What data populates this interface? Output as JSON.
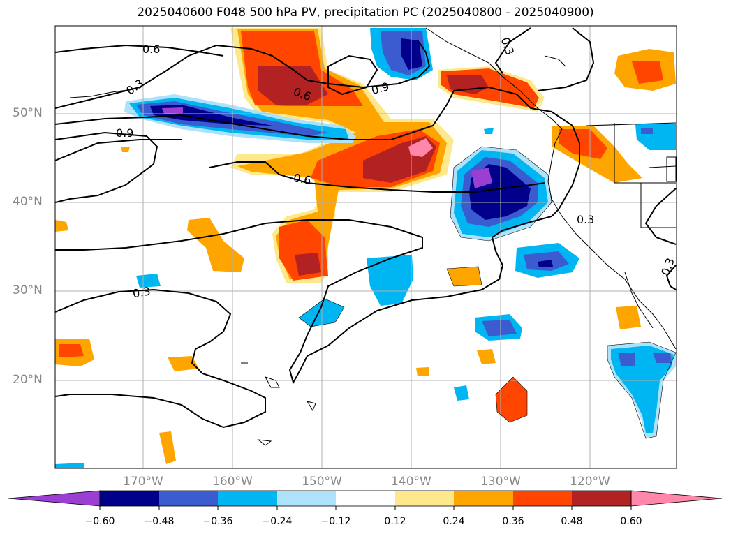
{
  "title": "2025040600 F048 500 hPa PV, precipitation PC (2025040800 - 2025040900)",
  "lat_labels": [
    "50°N",
    "40°N",
    "30°N",
    "20°N"
  ],
  "lon_labels": [
    "170°W",
    "160°W",
    "150°W",
    "140°W",
    "130°W",
    "120°W"
  ],
  "contour_labels": [
    "0.6",
    "0.3",
    "0.6",
    "0.9",
    "0.3",
    "0.9",
    "0.6",
    "0.3",
    "0.3",
    "0.3"
  ],
  "colorbar": {
    "ticks": [
      "−0.60",
      "−0.48",
      "−0.36",
      "−0.24",
      "−0.12",
      "0.12",
      "0.24",
      "0.36",
      "0.48",
      "0.60"
    ],
    "colors": [
      "#9a3fd1",
      "#00008b",
      "#3b5bd0",
      "#00b6f2",
      "#aee2fa",
      "#ffffff",
      "#fde98c",
      "#ffa500",
      "#ff4500",
      "#b22222",
      "#ff88aa"
    ]
  }
}
